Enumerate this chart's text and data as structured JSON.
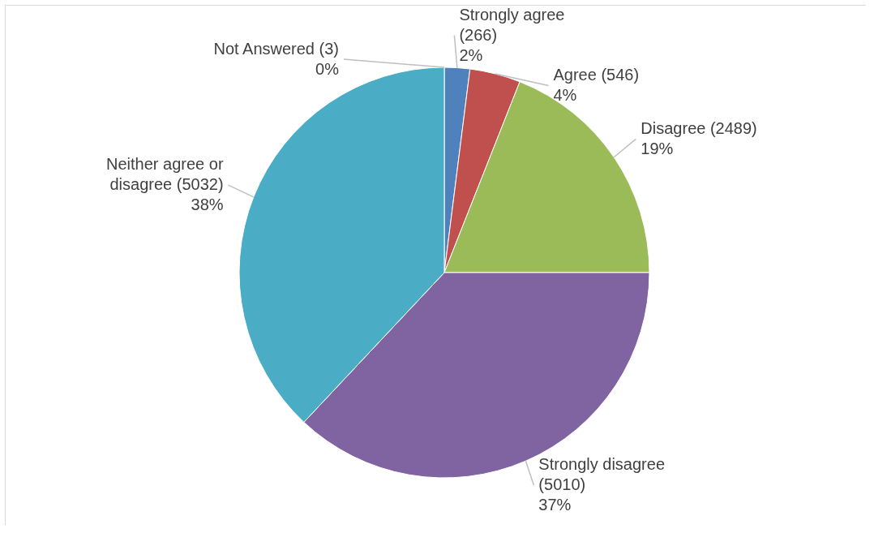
{
  "chart_data": {
    "type": "pie",
    "categories": [
      "Not Answered (3)",
      "Strongly agree (266)",
      "Agree (546)",
      "Disagree (2489)",
      "Strongly disagree (5010)",
      "Neither agree or disagree (5032)"
    ],
    "values": [
      0,
      2,
      4,
      19,
      37,
      38
    ],
    "colors": [
      "#f79646",
      "#4f81bd",
      "#c0504d",
      "#9bbb59",
      "#8064a2",
      "#4bacc6"
    ],
    "value_labels": [
      "0%",
      "2%",
      "4%",
      "19%",
      "37%",
      "38%"
    ]
  }
}
